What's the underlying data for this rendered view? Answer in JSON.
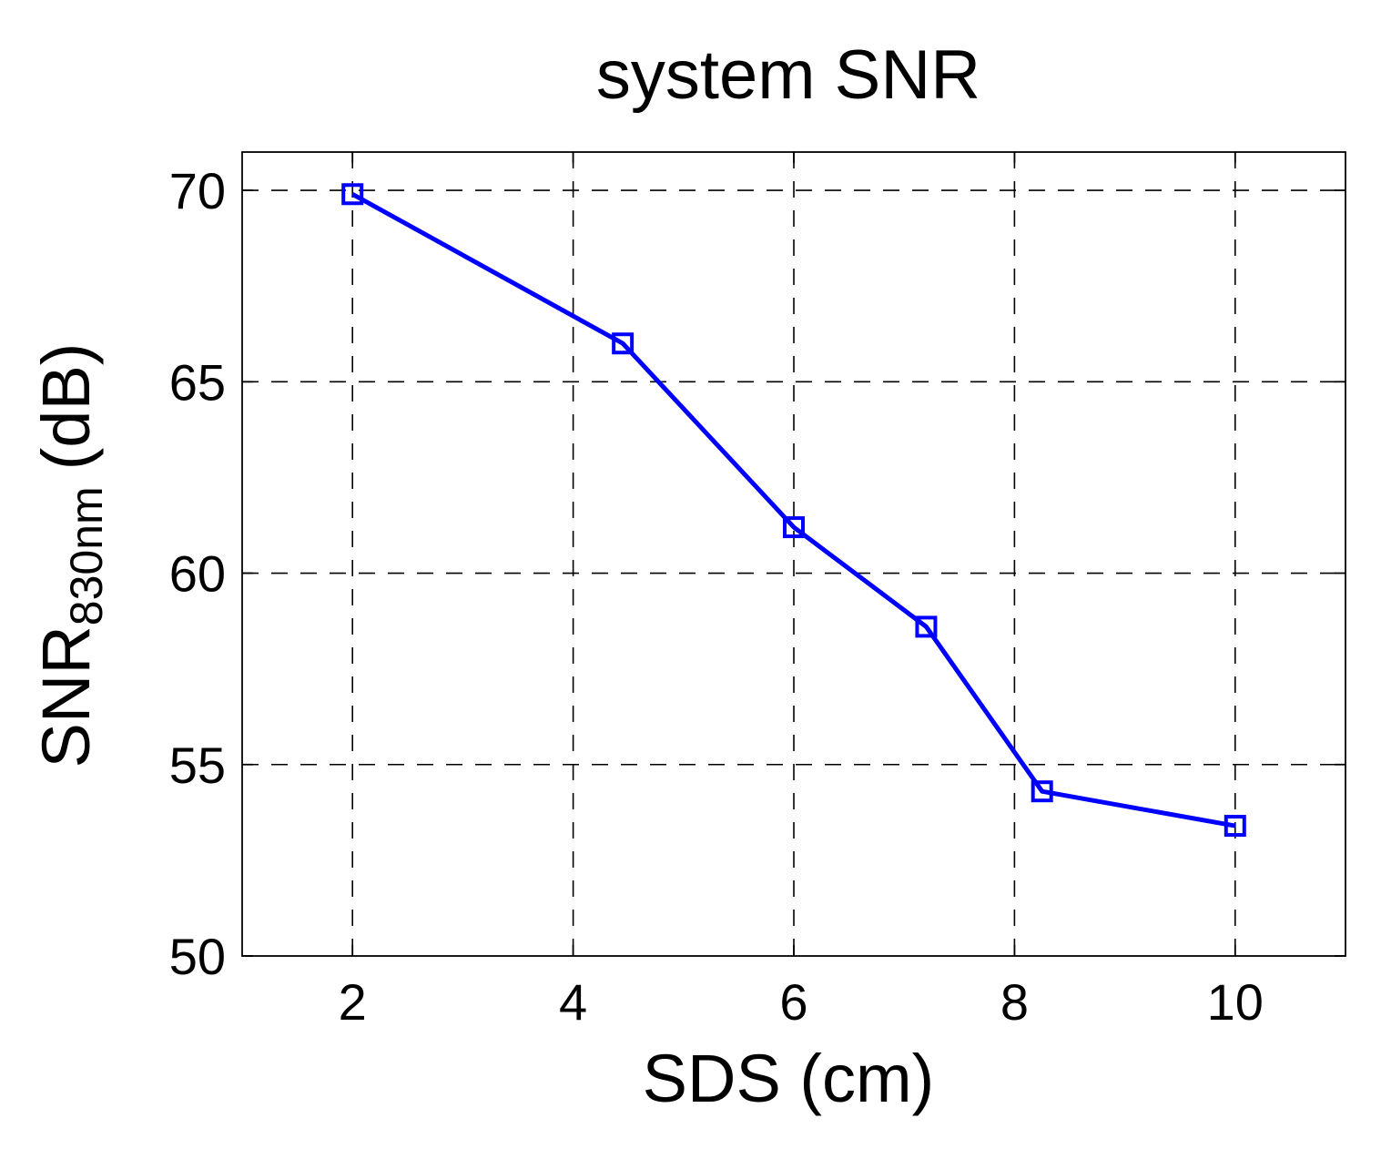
{
  "chart_data": {
    "type": "line",
    "title": "system SNR",
    "xlabel": "SDS (cm)",
    "ylabel": {
      "main": "SNR",
      "subscript": "830nm",
      "unit": "(dB)"
    },
    "xlim": [
      1,
      11
    ],
    "ylim": [
      50,
      71
    ],
    "xticks": [
      2,
      4,
      6,
      8,
      10
    ],
    "yticks": [
      50,
      55,
      60,
      65,
      70
    ],
    "grid": true,
    "series": [
      {
        "x": [
          2,
          4.45,
          6,
          7.2,
          8.25,
          10
        ],
        "y": [
          69.9,
          66.0,
          61.2,
          58.6,
          54.3,
          53.4
        ],
        "color": "#0000ff",
        "marker": "square"
      }
    ]
  }
}
